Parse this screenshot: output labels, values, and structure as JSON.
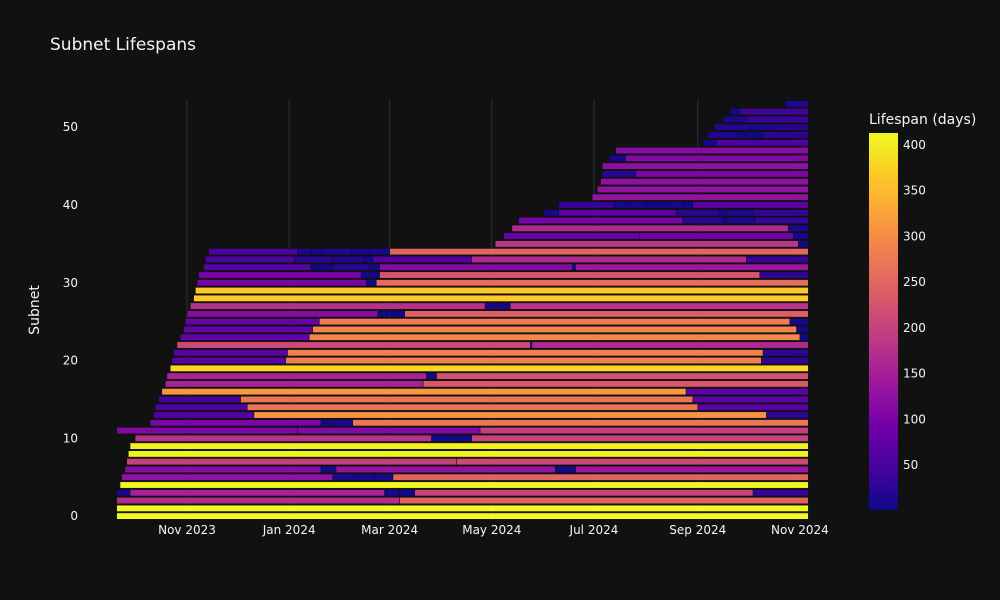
{
  "chart_data": {
    "type": "bar",
    "orientation": "horizontal-timeline",
    "title": "Subnet Lifespans",
    "xlabel": "",
    "ylabel": "Subnet",
    "x_range": [
      "2023-09-19",
      "2024-11-07"
    ],
    "y_range": [
      -0.5,
      53.5
    ],
    "x_ticks": [
      {
        "date": "2023-11-01",
        "label": "Nov 2023"
      },
      {
        "date": "2024-01-01",
        "label": "Jan 2024"
      },
      {
        "date": "2024-03-01",
        "label": "Mar 2024"
      },
      {
        "date": "2024-05-01",
        "label": "May 2024"
      },
      {
        "date": "2024-07-01",
        "label": "Jul 2024"
      },
      {
        "date": "2024-09-01",
        "label": "Sep 2024"
      },
      {
        "date": "2024-11-01",
        "label": "Nov 2024"
      }
    ],
    "y_ticks": [
      0,
      10,
      20,
      30,
      40,
      50
    ],
    "colorbar": {
      "title": "Lifespan (days)",
      "min": 1,
      "max": 413,
      "ticks": [
        50,
        100,
        150,
        200,
        250,
        300,
        350,
        400
      ],
      "colorscale": [
        "#0d0887",
        "#46039f",
        "#7201a8",
        "#9c179e",
        "#bd3786",
        "#d8576b",
        "#ed7953",
        "#fb9f3a",
        "#fdca26",
        "#f0f921"
      ]
    },
    "timeline_end": "2024-11-06",
    "rows": [
      {
        "subnet": 0,
        "starts": [
          "2023-09-20"
        ]
      },
      {
        "subnet": 1,
        "starts": [
          "2023-09-20"
        ]
      },
      {
        "subnet": 2,
        "starts": [
          "2023-09-20",
          "2024-03-07"
        ]
      },
      {
        "subnet": 3,
        "starts": [
          "2023-09-20",
          "2023-09-28",
          "2024-02-27",
          "2024-03-07",
          "2024-03-16",
          "2024-10-04"
        ]
      },
      {
        "subnet": 4,
        "starts": [
          "2023-09-22"
        ]
      },
      {
        "subnet": 5,
        "starts": [
          "2023-09-23",
          "2024-01-27",
          "2024-02-09",
          "2024-02-21",
          "2024-03-03"
        ]
      },
      {
        "subnet": 6,
        "starts": [
          "2023-09-25",
          "2024-01-20",
          "2024-01-29",
          "2024-06-08",
          "2024-06-20"
        ]
      },
      {
        "subnet": 7,
        "starts": [
          "2023-09-26",
          "2024-04-10"
        ]
      },
      {
        "subnet": 8,
        "starts": [
          "2023-09-27"
        ]
      },
      {
        "subnet": 9,
        "starts": [
          "2023-09-28"
        ]
      },
      {
        "subnet": 10,
        "starts": [
          "2023-10-01",
          "2024-03-26",
          "2024-04-05",
          "2024-04-12",
          "2024-04-19"
        ]
      },
      {
        "subnet": 11,
        "starts": [
          "2023-09-20",
          "2024-01-06",
          "2024-04-24"
        ]
      },
      {
        "subnet": 12,
        "starts": [
          "2023-10-10",
          "2024-01-20",
          "2024-01-27",
          "2024-02-08"
        ]
      },
      {
        "subnet": 13,
        "starts": [
          "2023-10-12",
          "2023-12-11",
          "2024-10-12"
        ]
      },
      {
        "subnet": 14,
        "starts": [
          "2023-10-13",
          "2023-12-07",
          "2024-09-01"
        ]
      },
      {
        "subnet": 15,
        "starts": [
          "2023-10-15",
          "2023-12-03",
          "2024-08-29"
        ]
      },
      {
        "subnet": 16,
        "starts": [
          "2023-10-17",
          "2024-08-25"
        ]
      },
      {
        "subnet": 17,
        "starts": [
          "2023-10-19",
          "2024-03-21"
        ]
      },
      {
        "subnet": 18,
        "starts": [
          "2023-10-20",
          "2024-03-23",
          "2024-03-29"
        ]
      },
      {
        "subnet": 19,
        "starts": [
          "2023-10-22"
        ]
      },
      {
        "subnet": 20,
        "starts": [
          "2023-10-23",
          "2023-12-30",
          "2024-10-09"
        ]
      },
      {
        "subnet": 21,
        "starts": [
          "2023-10-24",
          "2023-12-31",
          "2024-10-10"
        ]
      },
      {
        "subnet": 22,
        "starts": [
          "2023-10-26",
          "2024-05-24",
          "2024-05-25"
        ]
      },
      {
        "subnet": 23,
        "starts": [
          "2023-10-28",
          "2024-01-13",
          "2024-11-01"
        ]
      },
      {
        "subnet": 24,
        "starts": [
          "2023-10-30",
          "2024-01-15",
          "2024-10-30"
        ]
      },
      {
        "subnet": 25,
        "starts": [
          "2023-10-31",
          "2024-01-19",
          "2024-10-26"
        ]
      },
      {
        "subnet": 26,
        "starts": [
          "2023-11-01",
          "2024-02-23",
          "2024-02-28",
          "2024-03-05",
          "2024-03-10"
        ]
      },
      {
        "subnet": 27,
        "starts": [
          "2023-11-03",
          "2024-04-27",
          "2024-05-05",
          "2024-05-12"
        ]
      },
      {
        "subnet": 28,
        "starts": [
          "2023-11-05"
        ]
      },
      {
        "subnet": 29,
        "starts": [
          "2023-11-06"
        ]
      },
      {
        "subnet": 30,
        "starts": [
          "2023-11-07",
          "2024-02-16",
          "2024-02-22"
        ]
      },
      {
        "subnet": 31,
        "starts": [
          "2023-11-08",
          "2024-02-13",
          "2024-02-18",
          "2024-02-24",
          "2024-10-08"
        ]
      },
      {
        "subnet": 32,
        "starts": [
          "2023-11-11",
          "2024-01-14",
          "2024-01-18",
          "2024-01-27",
          "2024-02-18",
          "2024-02-24",
          "2024-06-18",
          "2024-06-20"
        ]
      },
      {
        "subnet": 33,
        "starts": [
          "2023-11-12",
          "2024-01-04",
          "2024-01-27",
          "2024-02-15",
          "2024-02-20",
          "2024-04-19",
          "2024-09-30"
        ]
      },
      {
        "subnet": 34,
        "starts": [
          "2023-11-14",
          "2024-01-06",
          "2024-01-14",
          "2024-01-21",
          "2024-02-07",
          "2024-02-18",
          "2024-03-01"
        ]
      },
      {
        "subnet": 35,
        "starts": [
          "2024-05-03",
          "2024-10-31"
        ]
      },
      {
        "subnet": 36,
        "starts": [
          "2024-05-08",
          "2024-07-28",
          "2024-10-28"
        ]
      },
      {
        "subnet": 37,
        "starts": [
          "2024-05-13",
          "2024-10-25"
        ]
      },
      {
        "subnet": 38,
        "starts": [
          "2024-05-17",
          "2024-08-23",
          "2024-09-16",
          "2024-09-19",
          "2024-10-05"
        ]
      },
      {
        "subnet": 39,
        "starts": [
          "2024-06-01",
          "2024-06-10",
          "2024-08-19",
          "2024-09-13",
          "2024-09-19",
          "2024-10-04"
        ]
      },
      {
        "subnet": 40,
        "starts": [
          "2024-06-10",
          "2024-07-13",
          "2024-07-22",
          "2024-08-01",
          "2024-08-08",
          "2024-08-15",
          "2024-08-24",
          "2024-08-29"
        ]
      },
      {
        "subnet": 41,
        "starts": [
          "2024-06-30"
        ]
      },
      {
        "subnet": 42,
        "starts": [
          "2024-07-03"
        ]
      },
      {
        "subnet": 43,
        "starts": [
          "2024-07-05"
        ]
      },
      {
        "subnet": 44,
        "starts": [
          "2024-07-06",
          "2024-07-26"
        ]
      },
      {
        "subnet": 45,
        "starts": [
          "2024-07-06"
        ]
      },
      {
        "subnet": 46,
        "starts": [
          "2024-07-10",
          "2024-07-20"
        ]
      },
      {
        "subnet": 47,
        "starts": [
          "2024-07-14"
        ]
      },
      {
        "subnet": 48,
        "starts": [
          "2024-09-04",
          "2024-09-12"
        ]
      },
      {
        "subnet": 49,
        "starts": [
          "2024-09-07",
          "2024-09-24",
          "2024-09-29",
          "2024-10-04",
          "2024-10-10"
        ]
      },
      {
        "subnet": 50,
        "starts": [
          "2024-09-11",
          "2024-10-02",
          "2024-10-16"
        ]
      },
      {
        "subnet": 51,
        "starts": [
          "2024-09-16",
          "2024-09-30"
        ]
      },
      {
        "subnet": 52,
        "starts": [
          "2024-09-20",
          "2024-09-26"
        ]
      },
      {
        "subnet": 53,
        "starts": [
          "2024-10-23"
        ]
      }
    ]
  }
}
